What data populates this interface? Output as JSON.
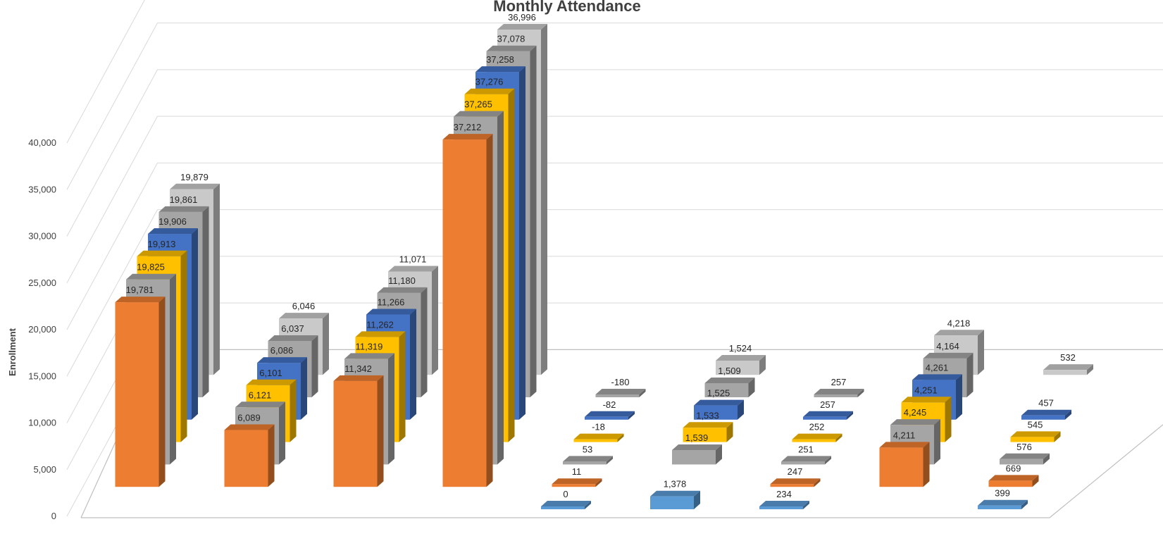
{
  "chart_data": {
    "type": "bar",
    "title": "Monthly Attendance",
    "ylabel": "Enrollment",
    "xlabel": "",
    "ylim": [
      0,
      40000
    ],
    "y_ticks": [
      "0",
      "5,000",
      "10,000",
      "15,000",
      "20,000",
      "25,000",
      "30,000",
      "35,000",
      "40,000"
    ],
    "gridlines": true,
    "legend": "none",
    "categories_count": 9,
    "series": [
      {
        "color": "#5b9bd5",
        "values": [
          null,
          null,
          null,
          null,
          0,
          1378,
          234,
          null,
          399
        ],
        "labels": [
          "",
          "",
          "",
          "",
          "0",
          "1,378",
          "234",
          "",
          "399"
        ]
      },
      {
        "color": "#ed7d31",
        "values": [
          19781,
          6089,
          11342,
          37212,
          11,
          null,
          247,
          4211,
          669
        ],
        "labels": [
          "19,781",
          "6,089",
          "11,342",
          "37,212",
          "11",
          "",
          "247",
          "4,211",
          "669"
        ]
      },
      {
        "color": "#a5a5a5",
        "values": [
          19825,
          6121,
          11319,
          37265,
          53,
          1539,
          251,
          4245,
          576
        ],
        "labels": [
          "19,825",
          "6,121",
          "11,319",
          "37,265",
          "53",
          "1,539",
          "251",
          "4,245",
          "576"
        ]
      },
      {
        "color": "#ffc000",
        "values": [
          19913,
          6101,
          11262,
          37276,
          -18,
          1533,
          252,
          4251,
          545
        ],
        "labels": [
          "19,913",
          "6,101",
          "11,262",
          "37,276",
          "-18",
          "1,533",
          "252",
          "4,251",
          "545"
        ]
      },
      {
        "color": "#4472c4",
        "values": [
          19906,
          6086,
          11266,
          37258,
          -82,
          1525,
          257,
          4261,
          457
        ],
        "labels": [
          "19,906",
          "6,086",
          "11,266",
          "37,258",
          "-82",
          "1,525",
          "257",
          "4,261",
          "457"
        ]
      },
      {
        "color": "#a5a5a5",
        "values": [
          19861,
          6037,
          11180,
          37078,
          -180,
          1509,
          257,
          4164,
          null
        ],
        "labels": [
          "19,861",
          "6,037",
          "11,180",
          "37,078",
          "-180",
          "1,509",
          "257",
          "4,164",
          ""
        ]
      },
      {
        "color": "#c9c9c9",
        "values": [
          19879,
          6046,
          11071,
          36996,
          null,
          1524,
          null,
          4218,
          532
        ],
        "labels": [
          "19,879",
          "6,046",
          "11,071",
          "36,996",
          "",
          "1,524",
          "",
          "4,218",
          "532"
        ]
      }
    ]
  }
}
